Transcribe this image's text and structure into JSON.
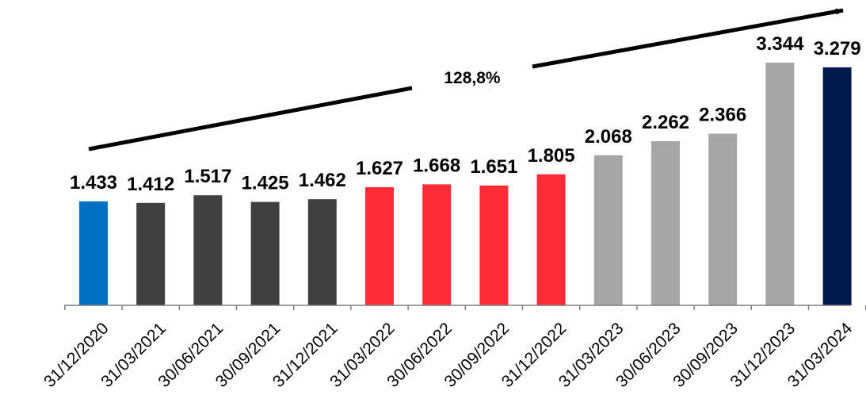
{
  "chart_data": {
    "type": "bar",
    "categories": [
      "31/12/2020",
      "31/03/2021",
      "30/06/2021",
      "30/09/2021",
      "31/12/2021",
      "31/03/2022",
      "30/06/2022",
      "30/09/2022",
      "31/12/2022",
      "31/03/2023",
      "30/06/2023",
      "30/09/2023",
      "31/12/2023",
      "31/03/2024"
    ],
    "values": [
      1433,
      1412,
      1517,
      1425,
      1462,
      1627,
      1668,
      1651,
      1805,
      2068,
      2262,
      2366,
      3344,
      3279
    ],
    "value_labels": [
      "1.433",
      "1.412",
      "1.517",
      "1.425",
      "1.462",
      "1.627",
      "1.668",
      "1.651",
      "1.805",
      "2.068",
      "2.262",
      "2.366",
      "3.344",
      "3.279"
    ],
    "bar_colors": [
      "#0070C0",
      "#404040",
      "#404040",
      "#404040",
      "#404040",
      "#FF2B37",
      "#FF2B37",
      "#FF2B37",
      "#FF2B37",
      "#A6A6A6",
      "#A6A6A6",
      "#A6A6A6",
      "#A6A6A6",
      "#001A4D"
    ],
    "title": "",
    "xlabel": "",
    "ylabel": "",
    "ylim": [
      0,
      3600
    ],
    "grid": false,
    "legend": "none",
    "annotations": [
      {
        "text": "128,8%",
        "type": "growth-arrow",
        "from_category": "31/12/2020",
        "to_category": "31/03/2024"
      }
    ]
  }
}
